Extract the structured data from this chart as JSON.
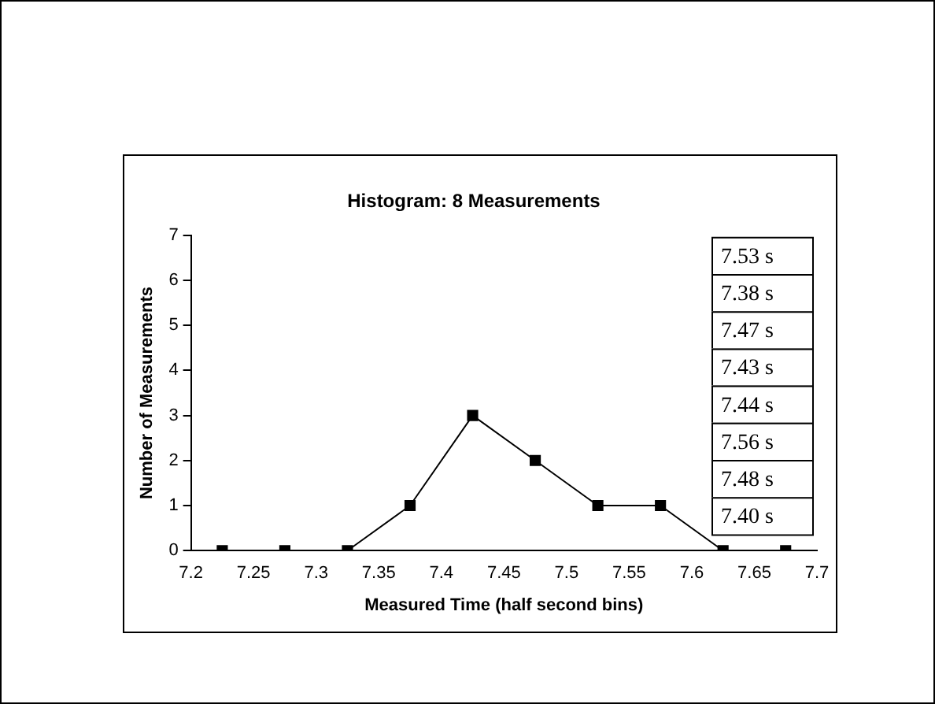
{
  "chart_data": {
    "type": "line",
    "title": "Histogram: 8 Measurements",
    "xlabel": "Measured Time (half second bins)",
    "ylabel": "Number of Measurements",
    "x": [
      7.225,
      7.275,
      7.325,
      7.375,
      7.425,
      7.475,
      7.525,
      7.575,
      7.625,
      7.675
    ],
    "series": [
      {
        "color": "#000000",
        "values": [
          0,
          0,
          0,
          1,
          3,
          2,
          1,
          1,
          0,
          0
        ]
      }
    ],
    "xlim": [
      7.2,
      7.7
    ],
    "xticks": [
      7.2,
      7.25,
      7.3,
      7.35,
      7.4,
      7.45,
      7.5,
      7.55,
      7.6,
      7.65,
      7.7
    ],
    "ylim": [
      0,
      7
    ],
    "yticks": [
      0,
      1,
      2,
      3,
      4,
      5,
      6,
      7
    ],
    "annotations": [
      "7.53 s",
      "7.38 s",
      "7.47 s",
      "7.43 s",
      "7.44 s",
      "7.56 s",
      "7.48 s",
      "7.40 s"
    ],
    "grid": false,
    "legend": false,
    "marker": "square",
    "line_style": "solid"
  }
}
